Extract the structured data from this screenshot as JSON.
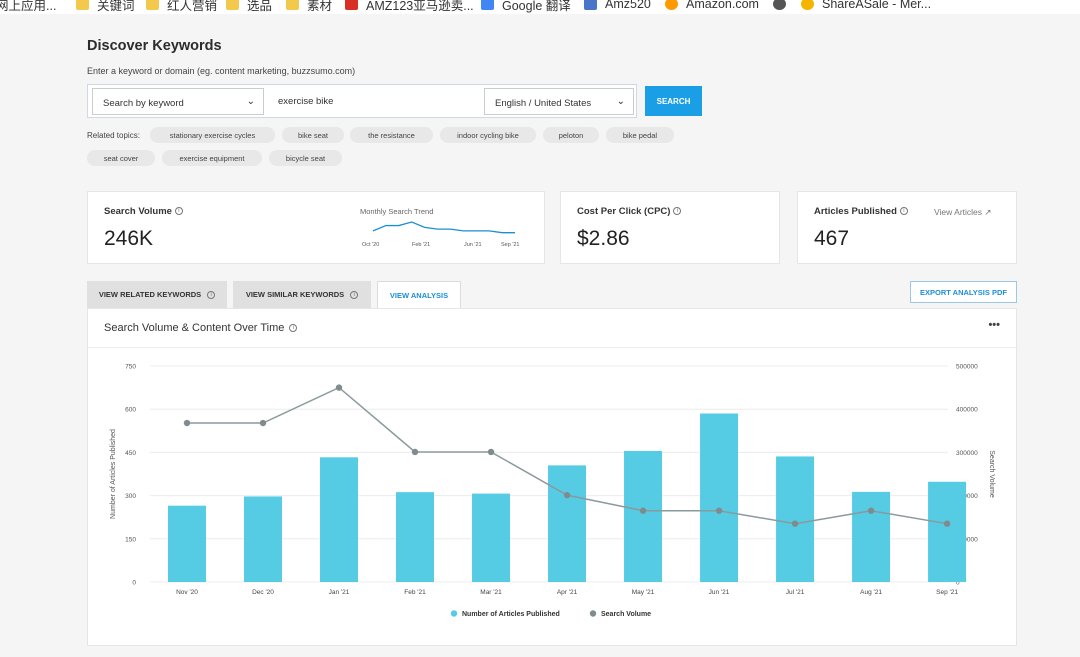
{
  "bookmarks": [
    {
      "label": "网上应用...",
      "icon": "folder-icon"
    },
    {
      "label": "关键词",
      "icon": "folder-icon"
    },
    {
      "label": "红人营销",
      "icon": "folder-icon"
    },
    {
      "label": "选品",
      "icon": "folder-icon"
    },
    {
      "label": "素材",
      "icon": "folder-icon"
    },
    {
      "label": "AMZ123亚马逊卖...",
      "icon": "amz123-icon"
    },
    {
      "label": "Google 翻译",
      "icon": "google-translate-icon"
    },
    {
      "label": "Amz520",
      "icon": "amz520-icon"
    },
    {
      "label": "Amazon.com",
      "icon": "amazon-icon"
    },
    {
      "label": "",
      "icon": "globe-icon"
    },
    {
      "label": "ShareASale - Mer...",
      "icon": "shareasale-icon"
    }
  ],
  "page": {
    "title": "Discover Keywords",
    "subtitle": "Enter a keyword or domain (eg. content marketing, buzzsumo.com)"
  },
  "search": {
    "type_selected": "Search by keyword",
    "keyword_value": "exercise bike",
    "location_selected": "English / United States",
    "button_label": "SEARCH"
  },
  "related": {
    "label": "Related topics:",
    "topics": [
      "stationary exercise cycles",
      "bike seat",
      "the resistance",
      "indoor cycling bike",
      "peloton",
      "bike pedal",
      "seat cover",
      "exercise equipment",
      "bicycle seat"
    ]
  },
  "metrics": {
    "search_volume": {
      "label": "Search Volume",
      "value": "246K"
    },
    "trend": {
      "title": "Monthly Search Trend",
      "ticks": [
        "Oct '20",
        "Feb '21",
        "Jun '21",
        "Sep '21"
      ],
      "values": [
        4,
        7,
        7,
        9,
        6,
        5,
        5,
        4,
        4,
        4,
        3,
        3
      ]
    },
    "cpc": {
      "label": "Cost Per Click (CPC)",
      "value": "$2.86"
    },
    "articles": {
      "label": "Articles Published",
      "value": "467",
      "link": "View Articles"
    }
  },
  "tabs": [
    {
      "label": "VIEW RELATED KEYWORDS",
      "active": false
    },
    {
      "label": "VIEW SIMILAR KEYWORDS",
      "active": false
    },
    {
      "label": "VIEW ANALYSIS",
      "active": true
    }
  ],
  "export_label": "EXPORT ANALYSIS PDF",
  "chart_section": {
    "title": "Search Volume & Content Over Time",
    "more": "•••"
  },
  "chart_data": {
    "type": "bar",
    "categories": [
      "Nov '20",
      "Dec '20",
      "Jan '21",
      "Feb '21",
      "Mar '21",
      "Apr '21",
      "May '21",
      "Jun '21",
      "Jul '21",
      "Aug '21",
      "Sep '21"
    ],
    "series": [
      {
        "name": "Number of Articles Published",
        "type": "bar",
        "axis": "left",
        "color": "#56cbe4",
        "values": [
          265,
          297,
          433,
          312,
          307,
          405,
          455,
          585,
          436,
          313,
          348
        ]
      },
      {
        "name": "Search Volume",
        "type": "line",
        "axis": "right",
        "color": "#8a9a9c",
        "values": [
          368000,
          368000,
          450000,
          301000,
          301000,
          201000,
          165000,
          165000,
          135000,
          165000,
          135000
        ]
      }
    ],
    "ylabel": "Number of Articles Published",
    "ylabel_right": "Search Volume",
    "ylim": [
      0,
      750
    ],
    "ylim_right": [
      0,
      500000
    ],
    "yticks": [
      "0",
      "150",
      "300",
      "450",
      "600",
      "750"
    ],
    "yticks_right": [
      "0",
      "100000",
      "200000",
      "300000",
      "400000",
      "500000"
    ],
    "grid": true,
    "legend_position": "bottom"
  }
}
